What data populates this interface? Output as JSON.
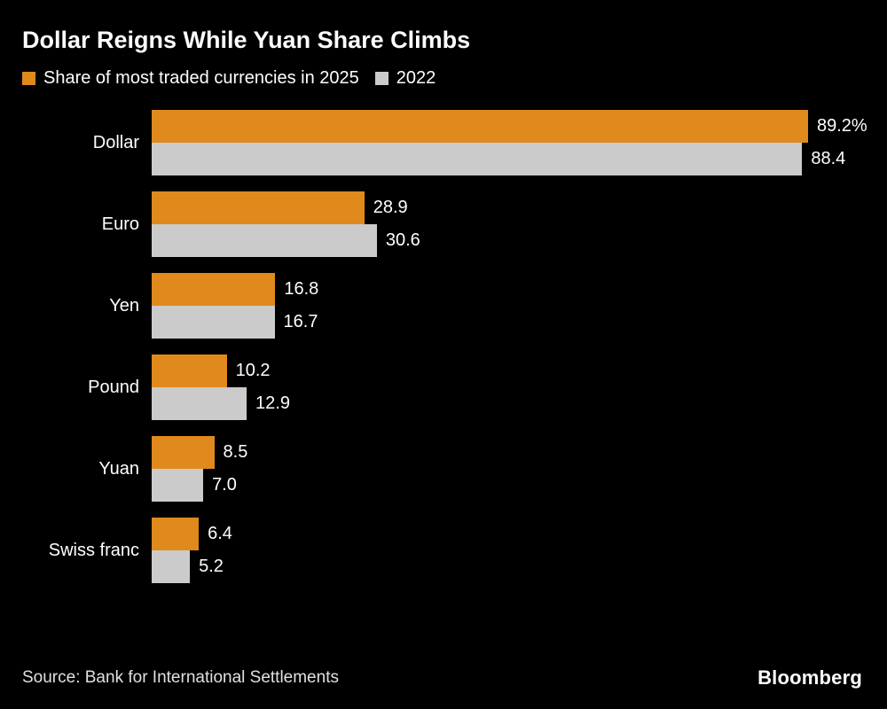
{
  "header": {
    "title": "Dollar Reigns While Yuan Share Climbs"
  },
  "footer": {
    "source": "Source: Bank for International Settlements",
    "brand": "Bloomberg"
  },
  "colors": {
    "background": "#000000",
    "text": "#ffffff",
    "series_2025": "#E0891D",
    "series_2022": "#CBCBCB"
  },
  "chart_data": {
    "type": "bar",
    "orientation": "horizontal",
    "title": "Dollar Reigns While Yuan Share Climbs",
    "legend": [
      "Share of most traded currencies in 2025",
      "2022"
    ],
    "legend_position": "top-left",
    "grid": false,
    "categories": [
      "Dollar",
      "Euro",
      "Yen",
      "Pound",
      "Yuan",
      "Swiss franc"
    ],
    "series": [
      {
        "name": "2025",
        "color": "#E0891D",
        "values": [
          89.2,
          28.9,
          16.8,
          10.2,
          8.5,
          6.4
        ],
        "value_labels": [
          "89.2%",
          "28.9",
          "16.8",
          "10.2",
          "8.5",
          "6.4"
        ]
      },
      {
        "name": "2022",
        "color": "#CBCBCB",
        "values": [
          88.4,
          30.6,
          16.7,
          12.9,
          7.0,
          5.2
        ],
        "value_labels": [
          "88.4",
          "30.6",
          "16.7",
          "12.9",
          "7.0",
          "5.2"
        ]
      }
    ],
    "xlim": [
      0,
      89.2
    ],
    "xlabel": "",
    "ylabel": "",
    "source": "Source: Bank for International Settlements"
  }
}
